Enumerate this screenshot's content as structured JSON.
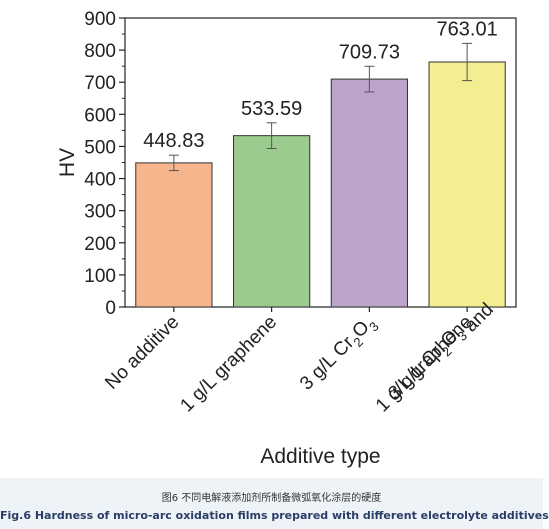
{
  "caption": {
    "cn": "图6 不同电解液添加剂所制备微弧氧化涂层的硬度",
    "en": "Fig.6 Hardness of micro-arc oxidation films prepared with different electrolyte additives"
  },
  "chart_data": {
    "type": "bar",
    "xlabel": "Additive type",
    "ylabel": "HV",
    "ylim": [
      0,
      900
    ],
    "yticks": [
      0,
      100,
      200,
      300,
      400,
      500,
      600,
      700,
      800,
      900
    ],
    "grid": false,
    "categories": [
      [
        "No additive"
      ],
      [
        "1 g/L graphene"
      ],
      [
        "3 g/L Cr2O3"
      ],
      [
        "3 g/L Cr2O3 and",
        "1 g/L graphene"
      ]
    ],
    "values": [
      448.83,
      533.59,
      709.73,
      763.01
    ],
    "value_labels": [
      "448.83",
      "533.59",
      "709.73",
      "763.01"
    ],
    "errors": [
      24,
      40,
      40,
      58
    ],
    "colors": [
      "#f6b58c",
      "#9ccb8e",
      "#bba3c9",
      "#f2ee91"
    ]
  }
}
